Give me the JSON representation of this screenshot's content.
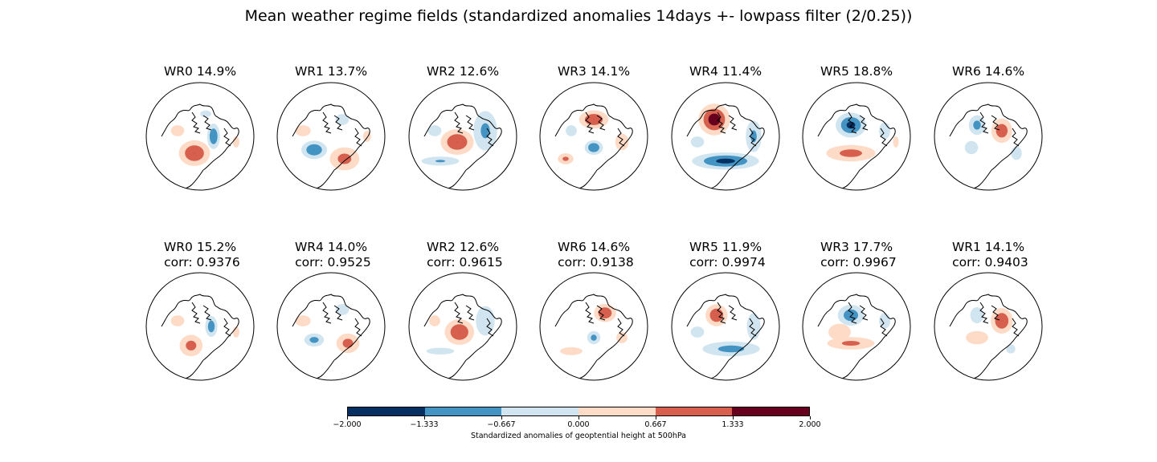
{
  "title": "Mean weather regime fields (standardized anomalies 14days +- lowpass filter (2/0.25))",
  "colors": [
    "#053061",
    "#4393c3",
    "#d1e5f0",
    "#fddbc7",
    "#d6604d",
    "#67001f"
  ],
  "row1": [
    {
      "label": "WR0 14.9%",
      "blobs": [
        [
          0.45,
          0.65,
          0.17,
          0.14,
          2
        ],
        [
          0.3,
          0.45,
          0.12,
          0.1,
          1
        ],
        [
          0.62,
          0.5,
          0.07,
          0.14,
          -2
        ],
        [
          0.82,
          0.55,
          0.06,
          0.1,
          1
        ],
        [
          0.55,
          0.3,
          0.1,
          0.06,
          -1
        ]
      ]
    },
    {
      "label": "WR1 13.7%",
      "blobs": [
        [
          0.35,
          0.62,
          0.14,
          0.1,
          -2
        ],
        [
          0.62,
          0.7,
          0.18,
          0.14,
          1.6
        ],
        [
          0.25,
          0.45,
          0.14,
          0.1,
          1
        ],
        [
          0.6,
          0.35,
          0.12,
          0.1,
          -1
        ],
        [
          0.82,
          0.5,
          0.07,
          0.1,
          1
        ]
      ]
    },
    {
      "label": "WR2 12.6%",
      "blobs": [
        [
          0.45,
          0.55,
          0.18,
          0.14,
          2
        ],
        [
          0.7,
          0.45,
          0.15,
          0.25,
          -1.5
        ],
        [
          0.3,
          0.72,
          0.25,
          0.06,
          -1.4
        ],
        [
          0.25,
          0.45,
          0.12,
          0.1,
          -1
        ]
      ]
    },
    {
      "label": "WR3 14.1%",
      "blobs": [
        [
          0.5,
          0.35,
          0.16,
          0.1,
          2
        ],
        [
          0.5,
          0.6,
          0.1,
          0.08,
          -2
        ],
        [
          0.25,
          0.7,
          0.1,
          0.07,
          1.5
        ],
        [
          0.75,
          0.55,
          0.12,
          0.15,
          1
        ],
        [
          0.3,
          0.45,
          0.1,
          0.1,
          -1
        ]
      ]
    },
    {
      "label": "WR4 11.4%",
      "blobs": [
        [
          0.4,
          0.35,
          0.16,
          0.16,
          2.4
        ],
        [
          0.5,
          0.72,
          0.35,
          0.09,
          -2.2
        ],
        [
          0.75,
          0.5,
          0.1,
          0.2,
          -1.5
        ],
        [
          0.25,
          0.55,
          0.12,
          0.1,
          -1
        ]
      ]
    },
    {
      "label": "WR5 18.8%",
      "blobs": [
        [
          0.45,
          0.4,
          0.16,
          0.13,
          -2.2
        ],
        [
          0.45,
          0.65,
          0.3,
          0.1,
          1.6
        ],
        [
          0.75,
          0.45,
          0.1,
          0.15,
          -1
        ],
        [
          0.85,
          0.55,
          0.05,
          0.1,
          1
        ]
      ]
    },
    {
      "label": "WR6 14.6%",
      "blobs": [
        [
          0.62,
          0.45,
          0.12,
          0.14,
          1.8
        ],
        [
          0.4,
          0.4,
          0.1,
          0.12,
          -1.6
        ],
        [
          0.35,
          0.6,
          0.12,
          0.12,
          -1
        ],
        [
          0.75,
          0.65,
          0.08,
          0.1,
          -1.2
        ]
      ]
    }
  ],
  "row2": [
    {
      "label": "WR0 15.2%",
      "corr": "corr: 0.9376",
      "blobs": [
        [
          0.42,
          0.67,
          0.14,
          0.13,
          1.6
        ],
        [
          0.6,
          0.5,
          0.07,
          0.12,
          -1.8
        ],
        [
          0.3,
          0.45,
          0.12,
          0.1,
          1
        ],
        [
          0.82,
          0.55,
          0.06,
          0.1,
          1
        ]
      ]
    },
    {
      "label": "WR4 14.0%",
      "corr": "corr: 0.9525",
      "blobs": [
        [
          0.35,
          0.62,
          0.12,
          0.08,
          -1.6
        ],
        [
          0.65,
          0.65,
          0.14,
          0.12,
          1.6
        ],
        [
          0.25,
          0.45,
          0.14,
          0.1,
          1
        ],
        [
          0.6,
          0.35,
          0.12,
          0.1,
          -1
        ]
      ]
    },
    {
      "label": "WR2 12.6%",
      "corr": "corr: 0.9615",
      "blobs": [
        [
          0.47,
          0.55,
          0.16,
          0.14,
          2
        ],
        [
          0.7,
          0.45,
          0.14,
          0.22,
          -1.2
        ],
        [
          0.3,
          0.72,
          0.25,
          0.06,
          -1
        ],
        [
          0.25,
          0.45,
          0.1,
          0.1,
          1
        ]
      ]
    },
    {
      "label": "WR6 14.6%",
      "corr": "corr: 0.9138",
      "blobs": [
        [
          0.6,
          0.38,
          0.12,
          0.1,
          2
        ],
        [
          0.5,
          0.6,
          0.08,
          0.08,
          -1.6
        ],
        [
          0.3,
          0.72,
          0.2,
          0.07,
          1
        ],
        [
          0.75,
          0.6,
          0.1,
          0.1,
          1
        ]
      ]
    },
    {
      "label": "WR5 11.9%",
      "corr": "corr: 0.9974",
      "blobs": [
        [
          0.42,
          0.4,
          0.12,
          0.12,
          2
        ],
        [
          0.55,
          0.7,
          0.35,
          0.09,
          -1.6
        ],
        [
          0.75,
          0.5,
          0.1,
          0.2,
          -1.2
        ],
        [
          0.25,
          0.55,
          0.12,
          0.1,
          -1
        ]
      ]
    },
    {
      "label": "WR3 17.7%",
      "corr": "corr: 0.9967",
      "blobs": [
        [
          0.45,
          0.4,
          0.15,
          0.12,
          -1.8
        ],
        [
          0.45,
          0.65,
          0.3,
          0.08,
          1.5
        ],
        [
          0.75,
          0.45,
          0.1,
          0.14,
          -1
        ],
        [
          0.35,
          0.55,
          0.2,
          0.15,
          1
        ]
      ]
    },
    {
      "label": "WR1 14.1%",
      "corr": "corr: 0.9403",
      "blobs": [
        [
          0.62,
          0.45,
          0.12,
          0.14,
          2
        ],
        [
          0.4,
          0.4,
          0.1,
          0.12,
          -1.2
        ],
        [
          0.4,
          0.6,
          0.2,
          0.12,
          1
        ],
        [
          0.7,
          0.7,
          0.08,
          0.08,
          -1
        ]
      ]
    }
  ],
  "colorbar": {
    "ticks": [
      "−2.000",
      "−1.333",
      "−0.667",
      "0.000",
      "0.667",
      "1.333",
      "2.000"
    ],
    "label": "Standardized anomalies of geoptential height at 500hPa"
  }
}
